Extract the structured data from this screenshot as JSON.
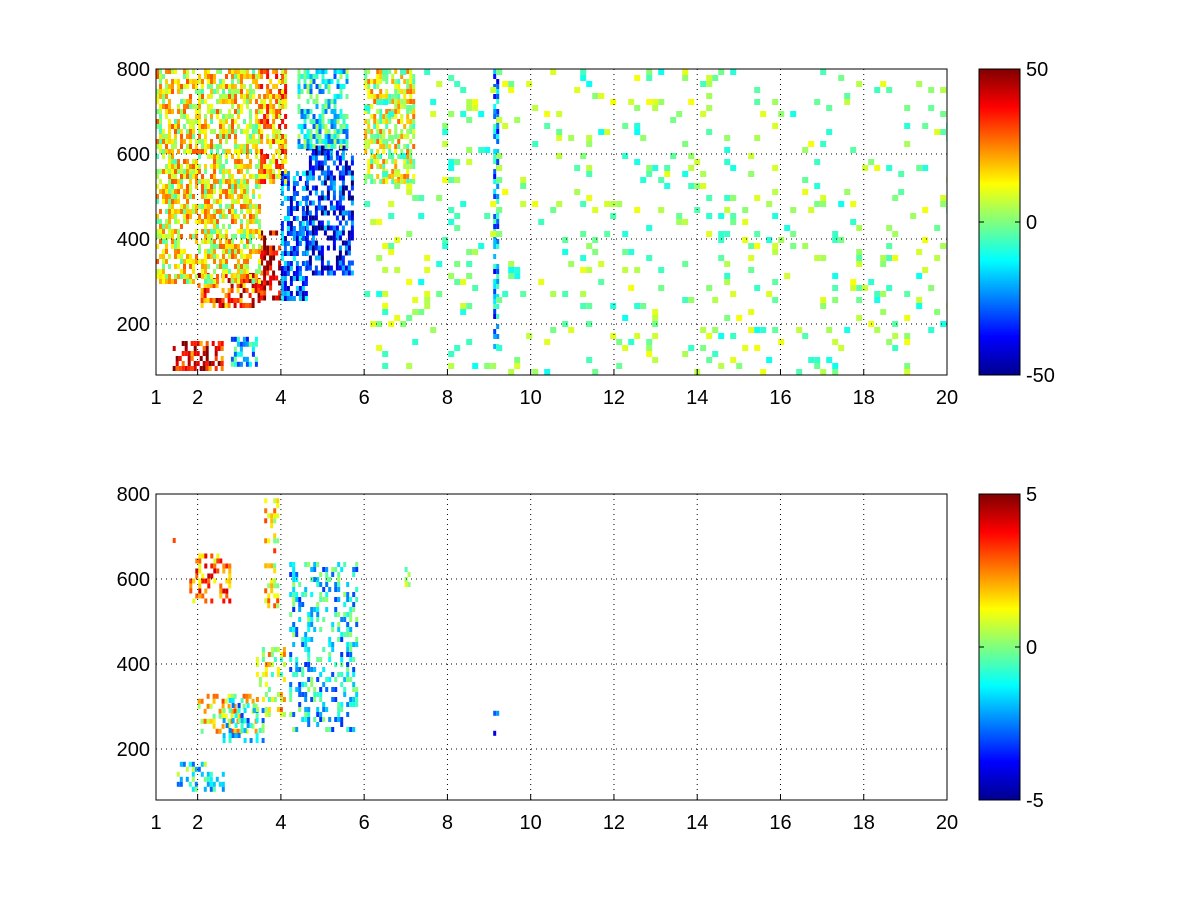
{
  "chart_data": [
    {
      "type": "heatmap",
      "title": "",
      "xlabel": "",
      "ylabel": "",
      "xlim": [
        1,
        20
      ],
      "ylim": [
        80,
        800
      ],
      "x_ticks": [
        1,
        2,
        4,
        6,
        8,
        10,
        12,
        14,
        16,
        18,
        20
      ],
      "x_tick_labels": [
        "1",
        "2",
        "4",
        "6",
        "8",
        "10",
        "12",
        "14",
        "16",
        "18",
        "20"
      ],
      "y_ticks": [
        200,
        400,
        600,
        800
      ],
      "y_tick_labels": [
        "200",
        "400",
        "600",
        "800"
      ],
      "grid": true,
      "colormap": "jet",
      "clim": [
        -50,
        50
      ],
      "colorbar_ticks": [
        50,
        0,
        -50
      ],
      "colorbar_tick_labels": [
        "50",
        "0",
        "-50"
      ],
      "features": [
        {
          "x": [
            1.4,
            2.6
          ],
          "y": [
            100,
            160
          ],
          "value": 38
        },
        {
          "x": [
            2.8,
            3.4
          ],
          "y": [
            100,
            170
          ],
          "value": -18
        },
        {
          "x": [
            2.0,
            3.5
          ],
          "y": [
            240,
            320
          ],
          "value": 32
        },
        {
          "x": [
            3.5,
            4.0
          ],
          "y": [
            260,
            420
          ],
          "value": 42
        },
        {
          "x": [
            4.0,
            4.6
          ],
          "y": [
            260,
            560
          ],
          "value": -28
        },
        {
          "x": [
            4.6,
            5.7
          ],
          "y": [
            320,
            620
          ],
          "value": -35
        },
        {
          "x": [
            1.0,
            3.5
          ],
          "y": [
            300,
            800
          ],
          "value": 12
        },
        {
          "x": [
            3.5,
            4.1
          ],
          "y": [
            540,
            800
          ],
          "value": 22
        },
        {
          "x": [
            4.4,
            5.6
          ],
          "y": [
            620,
            800
          ],
          "value": -12
        },
        {
          "x": [
            6.0,
            7.2
          ],
          "y": [
            540,
            800
          ],
          "value": 10
        },
        {
          "x": [
            9.1,
            9.2
          ],
          "y": [
            150,
            800
          ],
          "value": -22
        },
        {
          "x": [
            6.0,
            20.0
          ],
          "y": [
            80,
            800
          ],
          "value": 0,
          "sparse": true
        }
      ]
    },
    {
      "type": "heatmap",
      "title": "",
      "xlabel": "",
      "ylabel": "",
      "xlim": [
        1,
        20
      ],
      "ylim": [
        80,
        800
      ],
      "x_ticks": [
        1,
        2,
        4,
        6,
        8,
        10,
        12,
        14,
        16,
        18,
        20
      ],
      "x_tick_labels": [
        "1",
        "2",
        "4",
        "6",
        "8",
        "10",
        "12",
        "14",
        "16",
        "18",
        "20"
      ],
      "y_ticks": [
        200,
        400,
        600,
        800
      ],
      "y_tick_labels": [
        "200",
        "400",
        "600",
        "800"
      ],
      "grid": true,
      "colormap": "jet",
      "clim": [
        -5,
        5
      ],
      "colorbar_ticks": [
        5,
        0,
        -5
      ],
      "colorbar_tick_labels": [
        "5",
        "0",
        "-5"
      ],
      "features": [
        {
          "x": [
            1.5,
            2.6
          ],
          "y": [
            110,
            170
          ],
          "value": -1
        },
        {
          "x": [
            2.0,
            3.4
          ],
          "y": [
            240,
            330
          ],
          "value": 1.5
        },
        {
          "x": [
            2.6,
            3.6
          ],
          "y": [
            220,
            320
          ],
          "value": -1.5
        },
        {
          "x": [
            3.4,
            4.1
          ],
          "y": [
            280,
            440
          ],
          "value": 1
        },
        {
          "x": [
            3.6,
            3.9
          ],
          "y": [
            540,
            790
          ],
          "value": 1.5
        },
        {
          "x": [
            4.2,
            5.8
          ],
          "y": [
            250,
            640
          ],
          "value": -1.5
        },
        {
          "x": [
            1.8,
            2.8
          ],
          "y": [
            550,
            660
          ],
          "value": 2.5
        },
        {
          "x": [
            1.4,
            1.5
          ],
          "y": [
            690,
            720
          ],
          "value": 4.5
        },
        {
          "x": [
            9.1,
            9.2
          ],
          "y": [
            230,
            290
          ],
          "value": -3
        },
        {
          "x": [
            6.9,
            7.1
          ],
          "y": [
            580,
            640
          ],
          "value": 1
        }
      ]
    }
  ]
}
